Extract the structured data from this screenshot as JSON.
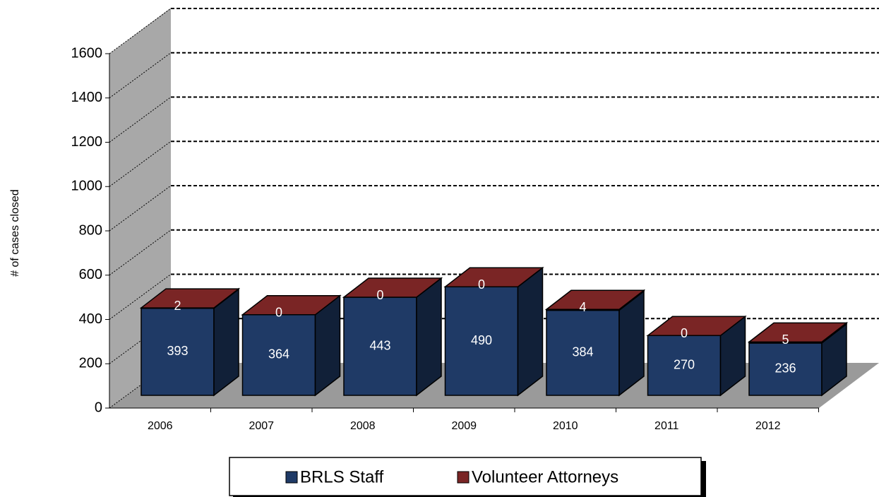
{
  "chart_data": {
    "type": "bar3d-stacked",
    "ylabel": "# of cases closed",
    "categories": [
      "2006",
      "2007",
      "2008",
      "2009",
      "2010",
      "2011",
      "2012"
    ],
    "series": [
      {
        "name": "BRLS Staff",
        "color": "#1f3a66",
        "values": [
          393,
          364,
          443,
          490,
          384,
          270,
          236
        ]
      },
      {
        "name": "Volunteer Attorneys",
        "color": "#7a2525",
        "values": [
          2,
          0,
          0,
          0,
          4,
          0,
          5
        ]
      }
    ],
    "ylim": [
      0,
      1600
    ],
    "yticks": [
      0,
      200,
      400,
      600,
      800,
      1000,
      1200,
      1400,
      1600
    ],
    "grid": true,
    "legend": "bottom"
  }
}
